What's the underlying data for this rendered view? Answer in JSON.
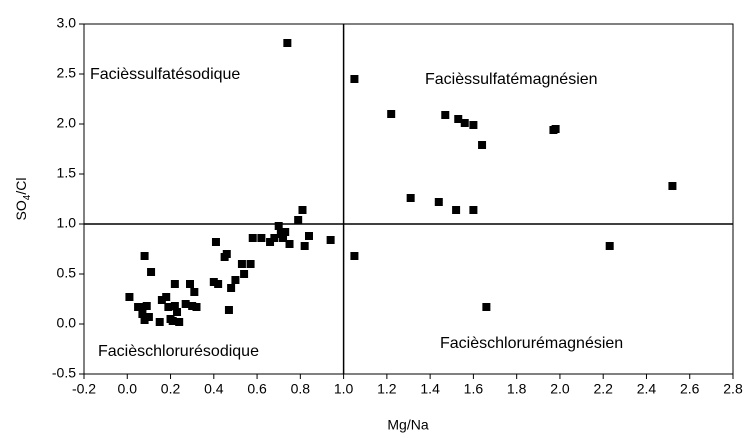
{
  "chart_data": {
    "type": "scatter",
    "xlabel": "Mg/Na",
    "ylabel": "SO4/Cl",
    "xlim": [
      -0.2,
      2.8
    ],
    "ylim": [
      -0.5,
      3.0
    ],
    "xticks": [
      -0.2,
      {
        "value": 0,
        "label": "0.0"
      },
      0.2,
      0.4,
      0.6,
      0.8,
      {
        "value": 1,
        "label": "1.0"
      },
      1.2,
      1.4,
      1.6,
      1.8,
      {
        "value": 2,
        "label": "2.0"
      },
      2.2,
      2.4,
      2.6,
      2.8
    ],
    "yticks": [
      -0.5,
      {
        "value": 0,
        "label": "0.0"
      },
      0.5,
      {
        "value": 1,
        "label": "1.0"
      },
      1.5,
      {
        "value": 2,
        "label": "2.0"
      },
      2.5,
      {
        "value": 3,
        "label": "3.0"
      }
    ],
    "reference_lines": {
      "x": 1,
      "y": 1
    },
    "annotations": [
      "Facièssulfatésodique",
      "Facièssulfatémagnésien",
      "Facièschlorurésodique",
      "Facièschlorurémagnésien"
    ],
    "color": "#000000",
    "x": [
      1.05,
      1.22,
      1.47,
      1.53,
      1.56,
      1.6,
      1.64,
      1.97,
      1.98,
      2.52,
      1.31,
      1.44,
      1.52,
      1.6,
      2.23,
      1.05,
      1.66,
      0.74,
      0.01,
      0.05,
      0.07,
      0.08,
      0.09,
      0.1,
      0.08,
      0.11,
      0.07,
      0.15,
      0.16,
      0.18,
      0.19,
      0.2,
      0.21,
      0.22,
      0.22,
      0.23,
      0.24,
      0.27,
      0.29,
      0.3,
      0.31,
      0.32,
      0.4,
      0.41,
      0.42,
      0.45,
      0.46,
      0.47,
      0.48,
      0.5,
      0.53,
      0.54,
      0.57,
      0.58,
      0.62,
      0.66,
      0.68,
      0.7,
      0.71,
      0.72,
      0.73,
      0.75,
      0.79,
      0.81,
      0.82,
      0.84,
      0.94
    ],
    "values": [
      2.45,
      2.1,
      2.09,
      2.05,
      2.01,
      1.99,
      1.79,
      1.94,
      1.95,
      1.38,
      1.26,
      1.22,
      1.14,
      1.14,
      0.78,
      0.68,
      0.17,
      2.81,
      0.27,
      0.17,
      0.1,
      0.04,
      0.18,
      0.07,
      0.68,
      0.52,
      0.17,
      0.02,
      0.24,
      0.27,
      0.17,
      0.05,
      0.03,
      0.18,
      0.4,
      0.12,
      0.02,
      0.2,
      0.4,
      0.18,
      0.32,
      0.17,
      0.42,
      0.82,
      0.4,
      0.67,
      0.7,
      0.14,
      0.36,
      0.44,
      0.6,
      0.5,
      0.6,
      0.86,
      0.86,
      0.82,
      0.86,
      0.98,
      0.9,
      0.86,
      0.92,
      0.8,
      1.04,
      1.14,
      0.78,
      0.88,
      0.84
    ]
  }
}
